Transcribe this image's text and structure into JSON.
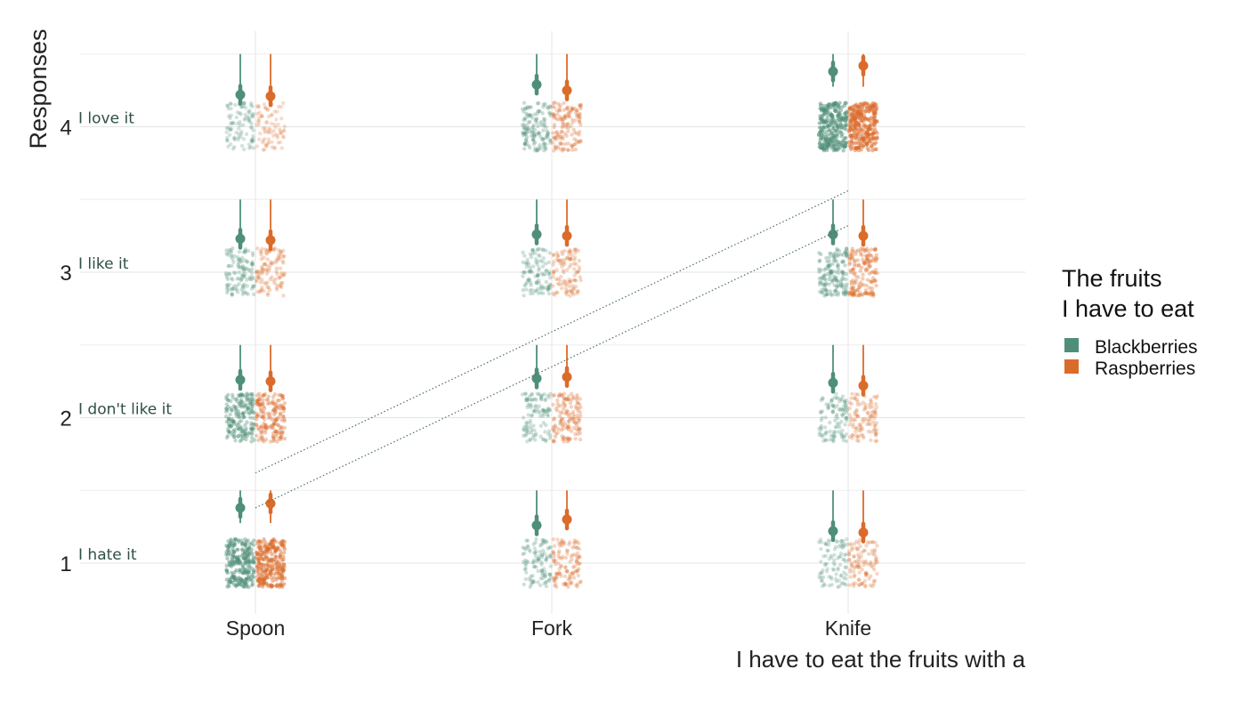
{
  "chart_data": {
    "type": "scatter",
    "title": "",
    "xlabel": "I have to eat the fruits with a",
    "ylabel": "Responses",
    "categories": [
      "Spoon",
      "Fork",
      "Knife"
    ],
    "y_ticks": [
      "1",
      "2",
      "3",
      "4"
    ],
    "y_levels": [
      "I hate it",
      "I don't like it",
      "I like it",
      "I love it"
    ],
    "ylim": [
      0.7,
      4.5
    ],
    "grid": true,
    "legend": {
      "title_lines": [
        "The fruits",
        "I have to eat"
      ],
      "position": "right",
      "entries": [
        {
          "name": "Blackberries",
          "color": "#4f8f78"
        },
        {
          "name": "Raspberries",
          "color": "#db6b2a"
        }
      ]
    },
    "series": [
      {
        "name": "Blackberries",
        "color": "#4f8f78",
        "density": [
          [
            0.75,
            0.55,
            0.3,
            0.2
          ],
          [
            0.25,
            0.25,
            0.25,
            0.35
          ],
          [
            0.2,
            0.25,
            0.4,
            0.85
          ]
        ],
        "estimates": [
          [
            1.38,
            2.26,
            3.23,
            4.22
          ],
          [
            1.26,
            2.27,
            3.26,
            4.29
          ],
          [
            1.22,
            2.24,
            3.26,
            4.38
          ]
        ]
      },
      {
        "name": "Raspberries",
        "color": "#db6b2a",
        "density": [
          [
            0.8,
            0.5,
            0.25,
            0.15
          ],
          [
            0.3,
            0.35,
            0.25,
            0.35
          ],
          [
            0.25,
            0.25,
            0.45,
            0.9
          ]
        ],
        "estimates": [
          [
            1.41,
            2.25,
            3.22,
            4.21
          ],
          [
            1.3,
            2.28,
            3.25,
            4.25
          ],
          [
            1.21,
            2.22,
            3.25,
            4.42
          ]
        ]
      }
    ],
    "trend_lines": [
      {
        "from": [
          0,
          1.62
        ],
        "to": [
          2,
          3.56
        ]
      },
      {
        "from": [
          0,
          1.38
        ],
        "to": [
          2,
          3.32
        ]
      }
    ]
  }
}
